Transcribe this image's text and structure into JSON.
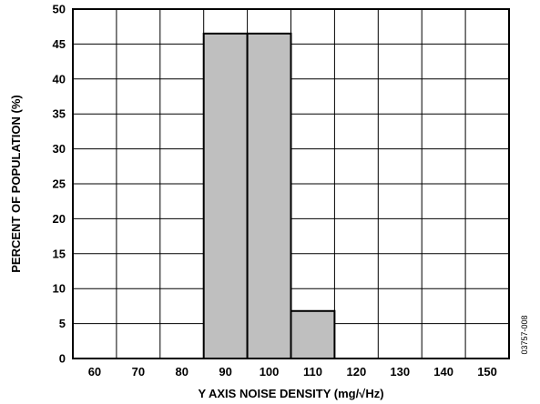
{
  "chart_data": {
    "type": "bar",
    "title": "",
    "xlabel": "Y AXIS NOISE DENSITY (mg/√Hz)",
    "ylabel": "PERCENT OF POPULATION (%)",
    "categories": [
      "60",
      "70",
      "80",
      "90",
      "100",
      "110",
      "120",
      "130",
      "140",
      "150"
    ],
    "values": [
      0,
      0,
      0,
      46.5,
      46.5,
      6.8,
      0,
      0,
      0,
      0
    ],
    "ylim": [
      0,
      50
    ],
    "yticks": [
      "0",
      "5",
      "10",
      "15",
      "20",
      "25",
      "30",
      "35",
      "40",
      "45",
      "50"
    ],
    "grid": true,
    "legend": "none",
    "bar_color": "#bfbfbf",
    "bar_edge_color": "#000000"
  },
  "figure_code": "03757-008"
}
